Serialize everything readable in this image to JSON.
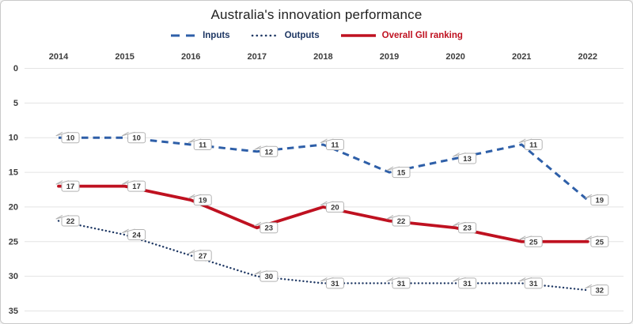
{
  "chart_data": {
    "type": "line",
    "title": "Australia's innovation performance",
    "x_categories": [
      "2014",
      "2015",
      "2016",
      "2017",
      "2018",
      "2019",
      "2020",
      "2021",
      "2022"
    ],
    "y_axis": {
      "ticks": [
        0,
        5,
        10,
        15,
        20,
        25,
        30,
        35
      ],
      "min": 0,
      "max": 35,
      "inverted": true,
      "grid": true
    },
    "legend_position": "top",
    "data_labels": true,
    "series": [
      {
        "name": "Inputs",
        "style": "dashed",
        "color": "#2e5fa8",
        "label_color": "#1f3864",
        "values": [
          10,
          10,
          11,
          12,
          11,
          15,
          13,
          11,
          19
        ]
      },
      {
        "name": "Outputs",
        "style": "dotted",
        "color": "#1f3864",
        "label_color": "#1f3864",
        "values": [
          22,
          24,
          27,
          30,
          31,
          31,
          31,
          31,
          32
        ]
      },
      {
        "name": "Overall GII ranking",
        "style": "solid",
        "color": "#bf1120",
        "label_color": "#bf1120",
        "values": [
          17,
          17,
          19,
          23,
          20,
          22,
          23,
          25,
          25
        ]
      }
    ]
  },
  "colors": {
    "background": "#ffffff",
    "card_border": "#c9c9c9",
    "grid": "#e3e3e3",
    "title_text": "#212121",
    "tick_text": "#3d3d3d",
    "callout_fill": "#ffffff",
    "callout_border": "#b3b3b3",
    "callout_text": "#363636"
  }
}
